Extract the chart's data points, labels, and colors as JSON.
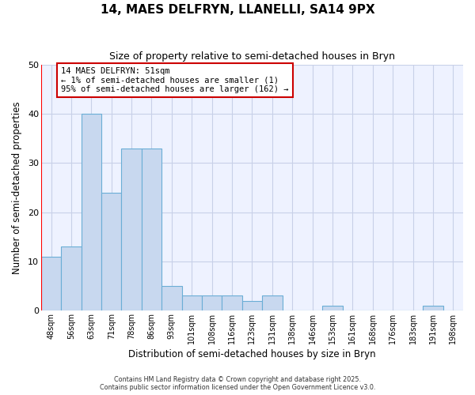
{
  "title": "14, MAES DELFRYN, LLANELLI, SA14 9PX",
  "subtitle": "Size of property relative to semi-detached houses in Bryn",
  "xlabel": "Distribution of semi-detached houses by size in Bryn",
  "ylabel": "Number of semi-detached properties",
  "categories": [
    "48sqm",
    "56sqm",
    "63sqm",
    "71sqm",
    "78sqm",
    "86sqm",
    "93sqm",
    "101sqm",
    "108sqm",
    "116sqm",
    "123sqm",
    "131sqm",
    "138sqm",
    "146sqm",
    "153sqm",
    "161sqm",
    "168sqm",
    "176sqm",
    "183sqm",
    "191sqm",
    "198sqm"
  ],
  "values": [
    11,
    13,
    40,
    24,
    33,
    33,
    5,
    3,
    3,
    3,
    2,
    3,
    0,
    0,
    1,
    0,
    0,
    0,
    0,
    1,
    0
  ],
  "bar_color": "#c8d8ef",
  "bar_edge_color": "#6baed6",
  "red_line_x": -0.5,
  "annotation_text": "14 MAES DELFRYN: 51sqm\n← 1% of semi-detached houses are smaller (1)\n95% of semi-detached houses are larger (162) →",
  "ylim": [
    0,
    50
  ],
  "background_color": "#ffffff",
  "plot_bg_color": "#eef2ff",
  "grid_color": "#c8d0e8",
  "footer": "Contains HM Land Registry data © Crown copyright and database right 2025.\nContains public sector information licensed under the Open Government Licence v3.0."
}
